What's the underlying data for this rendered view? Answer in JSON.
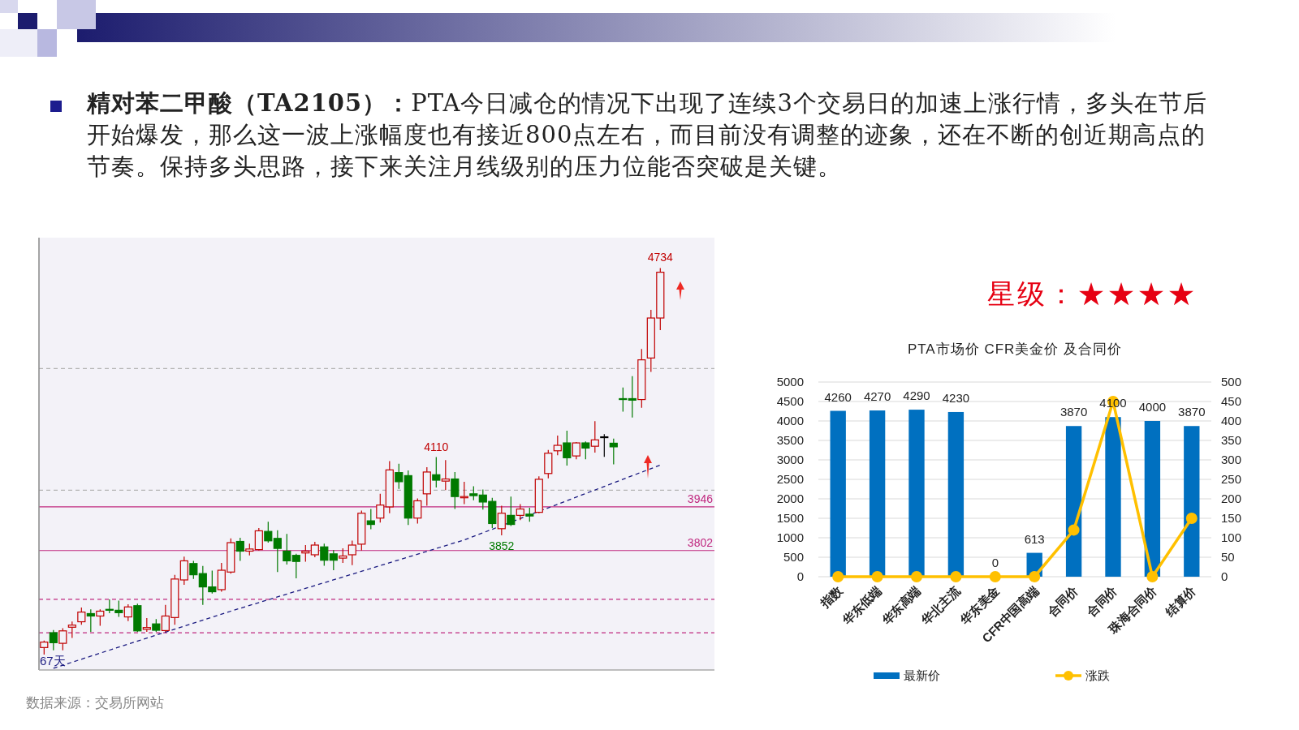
{
  "chart_data": [
    {
      "type": "candlestick",
      "title": "精对苯二甲酸（TA2105）：",
      "subtitle": "PTA今日减仓的情况下出现了连续3个交易日的加速上涨行情，多头在节后开始爆发，那么这一波上涨幅度也有接近800点左右，而目前没有调整的迹象，还在不断的创近期高点的节奏。保持多头思路，接下来关注月线级别的压力位能否突破是关键。",
      "categories": [
        null,
        null,
        null,
        null,
        null,
        null,
        null,
        null,
        null,
        null,
        null,
        null,
        null,
        null,
        null,
        null,
        null,
        null,
        null,
        null,
        null,
        null,
        null,
        null,
        null,
        null,
        null,
        null,
        null,
        null,
        null,
        null,
        null,
        null,
        null,
        null,
        null,
        null,
        null,
        null,
        null,
        null,
        null,
        null,
        null,
        null,
        null,
        null,
        null,
        null,
        null,
        null,
        null,
        null,
        null,
        null,
        null,
        null,
        null,
        null,
        null,
        null,
        null,
        null,
        null,
        null,
        null
      ],
      "ohlc": [
        [
          3482,
          3505,
          3459,
          3500
        ],
        [
          3531,
          3540,
          3473,
          3498
        ],
        [
          3496,
          3546,
          3473,
          3537
        ],
        [
          3549,
          3568,
          3514,
          3556
        ],
        [
          3567,
          3614,
          3557,
          3599
        ],
        [
          3594,
          3608,
          3534,
          3586
        ],
        [
          3586,
          3608,
          3554,
          3602
        ],
        [
          3608,
          3641,
          3595,
          3605
        ],
        [
          3605,
          3637,
          3583,
          3597
        ],
        [
          3583,
          3625,
          3569,
          3616
        ],
        [
          3620,
          3627,
          3534,
          3537
        ],
        [
          3542,
          3579,
          3534,
          3548
        ],
        [
          3560,
          3576,
          3534,
          3539
        ],
        [
          3538,
          3623,
          3534,
          3586
        ],
        [
          3581,
          3722,
          3557,
          3708
        ],
        [
          3705,
          3782,
          3689,
          3768
        ],
        [
          3759,
          3768,
          3708,
          3722
        ],
        [
          3726,
          3751,
          3623,
          3682
        ],
        [
          3682,
          3736,
          3660,
          3666
        ],
        [
          3673,
          3761,
          3666,
          3737
        ],
        [
          3731,
          3842,
          3726,
          3828
        ],
        [
          3832,
          3844,
          3768,
          3800
        ],
        [
          3800,
          3825,
          3786,
          3807
        ],
        [
          3805,
          3876,
          3802,
          3867
        ],
        [
          3865,
          3897,
          3828,
          3834
        ],
        [
          3842,
          3869,
          3731,
          3809
        ],
        [
          3800,
          3857,
          3756,
          3768
        ],
        [
          3786,
          3791,
          3710,
          3766
        ],
        [
          3794,
          3820,
          3765,
          3800
        ],
        [
          3788,
          3831,
          3780,
          3820
        ],
        [
          3814,
          3825,
          3752,
          3770
        ],
        [
          3791,
          3803,
          3737,
          3770
        ],
        [
          3777,
          3809,
          3761,
          3784
        ],
        [
          3788,
          3835,
          3754,
          3820
        ],
        [
          3823,
          3934,
          3802,
          3925
        ],
        [
          3900,
          3939,
          3872,
          3888
        ],
        [
          3909,
          3989,
          3894,
          3952
        ],
        [
          3946,
          4097,
          3925,
          4068
        ],
        [
          4059,
          4088,
          4005,
          4029
        ],
        [
          4049,
          4066,
          3886,
          3909
        ],
        [
          3909,
          3974,
          3891,
          3966
        ],
        [
          3989,
          4077,
          3950,
          4061
        ],
        [
          4052,
          4110,
          4010,
          4034
        ],
        [
          4031,
          4100,
          4001,
          4038
        ],
        [
          4038,
          4061,
          3939,
          3980
        ],
        [
          3976,
          4029,
          3955,
          3980
        ],
        [
          3989,
          4014,
          3968,
          3983
        ],
        [
          3985,
          4003,
          3937,
          3962
        ],
        [
          3964,
          3976,
          3876,
          3891
        ],
        [
          3874,
          3950,
          3852,
          3925
        ],
        [
          3918,
          3980,
          3883,
          3888
        ],
        [
          3918,
          3955,
          3902,
          3939
        ],
        [
          3922,
          3943,
          3897,
          3916
        ],
        [
          3928,
          4047,
          3925,
          4037
        ],
        [
          4056,
          4134,
          4040,
          4123
        ],
        [
          4131,
          4181,
          4116,
          4149
        ],
        [
          4157,
          4197,
          4082,
          4108
        ],
        [
          4114,
          4160,
          4103,
          4157
        ],
        [
          4157,
          4162,
          4103,
          4140
        ],
        [
          4146,
          4229,
          4125,
          4167
        ],
        [
          4177,
          4186,
          4111,
          4177
        ],
        [
          4156,
          4171,
          4086,
          4144
        ],
        [
          4303,
          4340,
          4260,
          4300
        ],
        [
          4303,
          4377,
          4241,
          4298
        ],
        [
          4300,
          4467,
          4273,
          4431
        ],
        [
          4437,
          4596,
          4391,
          4569
        ],
        [
          4569,
          4734,
          4529,
          4720
        ]
      ],
      "colors": [
        "#c00000",
        "#007a00",
        "#c00000",
        "#c00000",
        "#c00000",
        "#007a00",
        "#c00000",
        "#007a00",
        "#007a00",
        "#c00000",
        "#007a00",
        "#c00000",
        "#007a00",
        "#c00000",
        "#c00000",
        "#c00000",
        "#007a00",
        "#007a00",
        "#007a00",
        "#c00000",
        "#c00000",
        "#007a00",
        "#c00000",
        "#c00000",
        "#007a00",
        "#007a00",
        "#007a00",
        "#007a00",
        "#c00000",
        "#c00000",
        "#007a00",
        "#007a00",
        "#c00000",
        "#c00000",
        "#c00000",
        "#007a00",
        "#c00000",
        "#c00000",
        "#007a00",
        "#007a00",
        "#c00000",
        "#c00000",
        "#007a00",
        "#c00000",
        "#007a00",
        "#c00000",
        "#007a00",
        "#007a00",
        "#007a00",
        "#c00000",
        "#007a00",
        "#c00000",
        "#007a00",
        "#c00000",
        "#c00000",
        "#c00000",
        "#007a00",
        "#c00000",
        "#007a00",
        "#c00000",
        "#000000",
        "#007a00",
        "#007a00",
        "#007a00",
        "#c00000",
        "#c00000",
        "#c00000"
      ],
      "series": [
        {
          "type": "line",
          "color": "#1a1a80",
          "line_style": "dashed",
          "values": [
            null,
            3414,
            null,
            null,
            null,
            null,
            null,
            null,
            null,
            null,
            null,
            null,
            null,
            null,
            null,
            null,
            null,
            null,
            null,
            null,
            3602,
            null,
            null,
            null,
            null,
            null,
            null,
            null,
            null,
            null,
            null,
            null,
            null,
            null,
            null,
            null,
            null,
            null,
            null,
            null,
            null,
            null,
            null,
            null,
            null,
            3837,
            null,
            null,
            null,
            null,
            null,
            null,
            null,
            null,
            null,
            null,
            null,
            null,
            null,
            null,
            null,
            null,
            null,
            null,
            null,
            null,
            4084
          ]
        }
      ],
      "ylim": [
        3408,
        4834
      ],
      "ref_lines": [
        {
          "axis": "y",
          "value": 3946,
          "label": "3946",
          "color": "#c0287f",
          "line_style": "solid"
        },
        {
          "axis": "y",
          "value": 3802,
          "label": "3802",
          "color": "#c0287f",
          "line_style": "solid"
        },
        {
          "axis": "y",
          "value": 4402,
          "color": "#b4b4b4",
          "line_style": "dashed"
        },
        {
          "axis": "y",
          "value": 4001,
          "color": "#b4b4b4",
          "line_style": "dashed"
        },
        {
          "axis": "y",
          "value": 3641,
          "color": "#c0287f",
          "line_style": "dashed"
        },
        {
          "axis": "y",
          "value": 3531,
          "color": "#c0287f",
          "line_style": "dashed"
        }
      ],
      "annotations": [
        {
          "text": "4734",
          "y": 4734
        },
        {
          "text": "4110",
          "y": 4110
        },
        {
          "text": "3852",
          "y": 3852
        },
        "67天",
        "数据来源：交易所网站"
      ]
    },
    {
      "type": "bar",
      "title": "PTA市场价  CFR美金价  及合同价",
      "categories": [
        "指数",
        "华东低端",
        "华东高端",
        "华北主流",
        "华东美金",
        "CFR中国高端",
        "合同价",
        "合同价",
        "珠海合同价",
        "结算价"
      ],
      "series": [
        {
          "name": "最新价",
          "type": "bar",
          "color": "#0070c0",
          "values": [
            4260,
            4270,
            4290,
            4230,
            0,
            613,
            3870,
            4100,
            4000,
            3870
          ],
          "value_labels": [
            "4260",
            "4270",
            "4290",
            "4230",
            "0",
            "613",
            "3870",
            "4100",
            "4000",
            "3870"
          ]
        },
        {
          "name": "涨跌",
          "type": "line",
          "axis": "y2",
          "color": "#ffc000",
          "marker": "circle",
          "values": [
            0,
            0,
            0,
            0,
            0,
            0,
            120,
            450,
            0,
            150
          ]
        }
      ],
      "ylim": [
        0,
        5000
      ],
      "yticks": [
        0,
        500,
        1000,
        1500,
        2000,
        2500,
        3000,
        3500,
        4000,
        4500,
        5000
      ],
      "y2lim": [
        0,
        500
      ],
      "y2ticks": [
        0,
        50,
        100,
        150,
        200,
        250,
        300,
        350,
        400,
        450,
        500
      ],
      "grid": "y",
      "legend": "bottom",
      "annotations": [
        "星级：★★★★"
      ]
    }
  ]
}
